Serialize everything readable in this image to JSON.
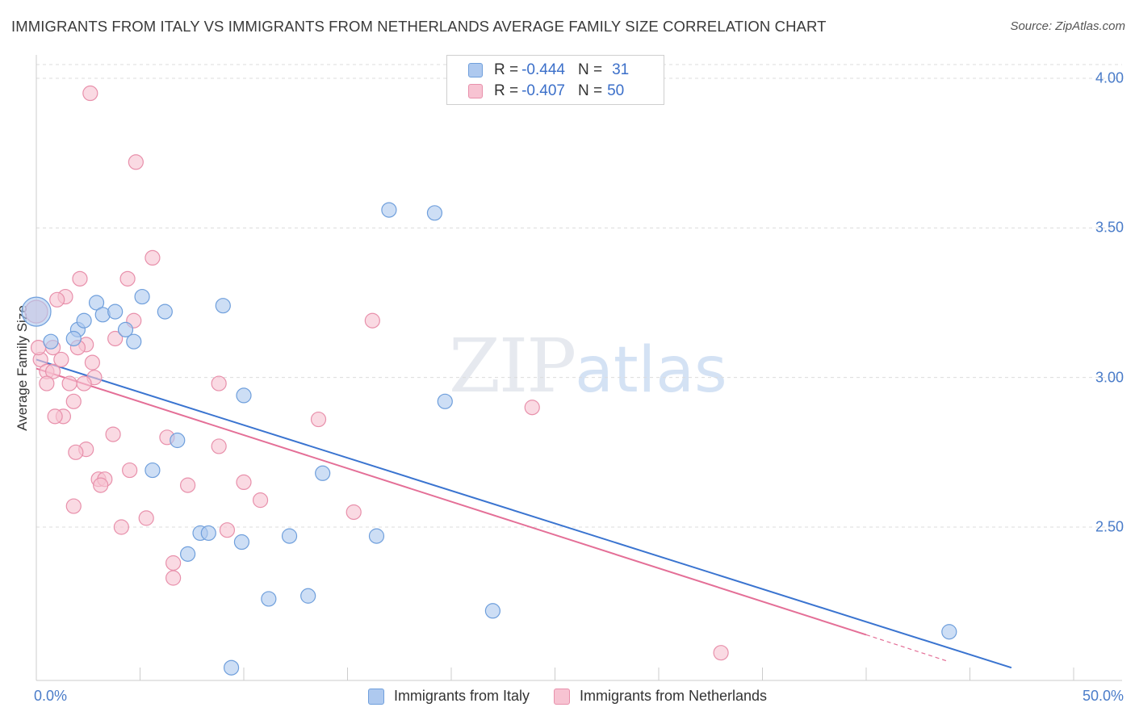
{
  "chart_data": {
    "type": "scatter",
    "title": "IMMIGRANTS FROM ITALY VS IMMIGRANTS FROM NETHERLANDS AVERAGE FAMILY SIZE CORRELATION CHART",
    "source": "Source: ZipAtlas.com",
    "xlabel": "",
    "ylabel": "Average Family Size",
    "xlim": [
      0,
      50
    ],
    "ylim": [
      2.03,
      4.05
    ],
    "x_tick_labels": [
      "0.0%",
      "50.0%"
    ],
    "y_ticks": [
      2.5,
      3.0,
      3.5,
      4.0
    ],
    "y_tick_labels": [
      "2.50",
      "3.00",
      "3.50",
      "4.00"
    ],
    "watermark": {
      "zip": "ZIP",
      "atlas": "atlas"
    },
    "colors": {
      "italy_fill": "#aec9ef",
      "italy_stroke": "#6f9fdc",
      "italy_line": "#3a74d0",
      "netherlands_fill": "#f7c3d2",
      "netherlands_stroke": "#e890ab",
      "netherlands_line": "#e46f97",
      "grid": "#dcdcdc",
      "tick_text": "#4a7cc9"
    },
    "stats": [
      {
        "r_label": "R =",
        "r": "-0.444",
        "n_label": "N =",
        "n": "31"
      },
      {
        "r_label": "R =",
        "r": "-0.407",
        "n_label": "N =",
        "n": "50"
      }
    ],
    "series": [
      {
        "name": "Immigrants from Italy",
        "points": [
          [
            0.0,
            3.22,
            18
          ],
          [
            0.7,
            3.12,
            9
          ],
          [
            2.0,
            3.16,
            9
          ],
          [
            1.8,
            3.13,
            9
          ],
          [
            2.3,
            3.19,
            9
          ],
          [
            2.9,
            3.25,
            9
          ],
          [
            3.2,
            3.21,
            9
          ],
          [
            3.8,
            3.22,
            9
          ],
          [
            4.3,
            3.16,
            9
          ],
          [
            4.7,
            3.12,
            9
          ],
          [
            5.1,
            3.27,
            9
          ],
          [
            6.2,
            3.22,
            9
          ],
          [
            9.0,
            3.24,
            9
          ],
          [
            17.0,
            3.56,
            9
          ],
          [
            19.2,
            3.55,
            9
          ],
          [
            10.0,
            2.94,
            9
          ],
          [
            19.7,
            2.92,
            9
          ],
          [
            6.8,
            2.79,
            9
          ],
          [
            5.6,
            2.69,
            9
          ],
          [
            13.8,
            2.68,
            9
          ],
          [
            7.9,
            2.48,
            9
          ],
          [
            8.3,
            2.48,
            9
          ],
          [
            9.9,
            2.45,
            9
          ],
          [
            12.2,
            2.47,
            9
          ],
          [
            16.4,
            2.47,
            9
          ],
          [
            7.3,
            2.41,
            9
          ],
          [
            11.2,
            2.26,
            9
          ],
          [
            13.1,
            2.27,
            9
          ],
          [
            22.0,
            2.22,
            9
          ],
          [
            44.0,
            2.15,
            9
          ],
          [
            9.4,
            2.03,
            9
          ]
        ]
      },
      {
        "name": "Immigrants from Netherlands",
        "points": [
          [
            0.0,
            3.22,
            14
          ],
          [
            2.6,
            3.95,
            9
          ],
          [
            4.8,
            3.72,
            9
          ],
          [
            5.6,
            3.4,
            9
          ],
          [
            4.4,
            3.33,
            9
          ],
          [
            2.1,
            3.33,
            9
          ],
          [
            1.4,
            3.27,
            9
          ],
          [
            1.0,
            3.26,
            9
          ],
          [
            4.7,
            3.19,
            9
          ],
          [
            16.2,
            3.19,
            9
          ],
          [
            3.8,
            3.13,
            9
          ],
          [
            2.4,
            3.11,
            9
          ],
          [
            2.0,
            3.1,
            9
          ],
          [
            0.8,
            3.1,
            9
          ],
          [
            0.2,
            3.06,
            9
          ],
          [
            1.2,
            3.06,
            9
          ],
          [
            2.7,
            3.05,
            9
          ],
          [
            0.5,
            3.02,
            9
          ],
          [
            0.8,
            3.02,
            9
          ],
          [
            2.8,
            3.0,
            9
          ],
          [
            0.5,
            2.98,
            9
          ],
          [
            1.6,
            2.98,
            9
          ],
          [
            2.3,
            2.98,
            9
          ],
          [
            8.8,
            2.98,
            9
          ],
          [
            1.8,
            2.92,
            9
          ],
          [
            23.9,
            2.9,
            9
          ],
          [
            1.3,
            2.87,
            9
          ],
          [
            0.9,
            2.87,
            9
          ],
          [
            13.6,
            2.86,
            9
          ],
          [
            3.7,
            2.81,
            9
          ],
          [
            6.3,
            2.8,
            9
          ],
          [
            8.8,
            2.77,
            9
          ],
          [
            2.4,
            2.76,
            9
          ],
          [
            1.9,
            2.75,
            9
          ],
          [
            4.5,
            2.69,
            9
          ],
          [
            3.0,
            2.66,
            9
          ],
          [
            3.3,
            2.66,
            9
          ],
          [
            3.1,
            2.64,
            9
          ],
          [
            7.3,
            2.64,
            9
          ],
          [
            10.0,
            2.65,
            9
          ],
          [
            10.8,
            2.59,
            9
          ],
          [
            1.8,
            2.57,
            9
          ],
          [
            15.3,
            2.55,
            9
          ],
          [
            5.3,
            2.53,
            9
          ],
          [
            4.1,
            2.5,
            9
          ],
          [
            9.2,
            2.49,
            9
          ],
          [
            6.6,
            2.38,
            9
          ],
          [
            6.6,
            2.33,
            9
          ],
          [
            33.0,
            2.08,
            9
          ],
          [
            0.1,
            3.1,
            9
          ]
        ]
      }
    ],
    "trend_lines": [
      {
        "name": "Immigrants from Italy",
        "x": [
          0,
          47
        ],
        "y": [
          3.06,
          2.03
        ]
      },
      {
        "name": "Immigrants from Netherlands",
        "x": [
          0,
          40
        ],
        "y": [
          3.03,
          2.14
        ],
        "dashed_to": [
          44,
          2.05
        ]
      }
    ]
  },
  "legend": [
    "Immigrants from Italy",
    "Immigrants from Netherlands"
  ]
}
